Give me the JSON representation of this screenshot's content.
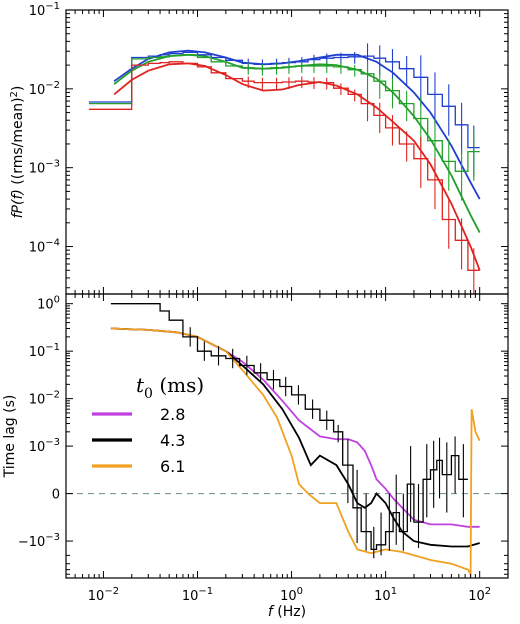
{
  "chart_data": [
    {
      "type": "line",
      "panel": "top",
      "ylabel_parts": [
        "fP(f)",
        " ((rms/mean)",
        "2",
        ")"
      ],
      "xscale": "log",
      "yscale": "log",
      "xlim": [
        0.004,
        200
      ],
      "ylim": [
        2.5e-05,
        0.1
      ],
      "yticks": [
        {
          "v": 0.1,
          "base": "10",
          "exp": "−1"
        },
        {
          "v": 0.01,
          "base": "10",
          "exp": "−2"
        },
        {
          "v": 0.001,
          "base": "10",
          "exp": "−3"
        },
        {
          "v": 0.0001,
          "base": "10",
          "exp": "−4"
        }
      ],
      "colors": {
        "blue": "#1f3fd1",
        "green": "#22a02a",
        "red": "#e0231f"
      },
      "series": [
        {
          "color": "blue",
          "kind": "model",
          "x": [
            0.013,
            0.02,
            0.03,
            0.05,
            0.08,
            0.12,
            0.2,
            0.3,
            0.5,
            0.8,
            1.2,
            2,
            3,
            5,
            8,
            12,
            20,
            30,
            50,
            80,
            100
          ],
          "y": [
            0.0125,
            0.018,
            0.024,
            0.029,
            0.0305,
            0.029,
            0.025,
            0.0215,
            0.0205,
            0.021,
            0.0225,
            0.025,
            0.027,
            0.027,
            0.022,
            0.016,
            0.009,
            0.005,
            0.0019,
            0.00065,
            0.0004
          ]
        },
        {
          "color": "green",
          "kind": "model",
          "x": [
            0.013,
            0.02,
            0.03,
            0.05,
            0.08,
            0.12,
            0.2,
            0.3,
            0.5,
            0.8,
            1.2,
            2,
            3,
            5,
            8,
            12,
            20,
            30,
            50,
            80,
            100
          ],
          "y": [
            0.0115,
            0.017,
            0.022,
            0.026,
            0.027,
            0.026,
            0.022,
            0.0185,
            0.018,
            0.0185,
            0.0195,
            0.0205,
            0.02,
            0.0175,
            0.0135,
            0.009,
            0.0045,
            0.0023,
            0.0008,
            0.00025,
            0.00015
          ]
        },
        {
          "color": "red",
          "kind": "model",
          "x": [
            0.013,
            0.02,
            0.03,
            0.05,
            0.08,
            0.12,
            0.2,
            0.3,
            0.5,
            0.8,
            1.2,
            2,
            3,
            5,
            8,
            12,
            20,
            30,
            50,
            80,
            100
          ],
          "y": [
            0.0085,
            0.013,
            0.017,
            0.0205,
            0.021,
            0.0195,
            0.015,
            0.0115,
            0.0095,
            0.0098,
            0.0112,
            0.0122,
            0.011,
            0.0085,
            0.0058,
            0.0038,
            0.0022,
            0.0011,
            0.00035,
            0.0001,
            5e-05
          ]
        },
        {
          "color": "blue",
          "kind": "step",
          "x": [
            0.007,
            0.013,
            0.02,
            0.03,
            0.04,
            0.05,
            0.07,
            0.1,
            0.14,
            0.2,
            0.3,
            0.4,
            0.6,
            0.8,
            1.1,
            1.5,
            2,
            2.8,
            4,
            5.5,
            7.5,
            10,
            14,
            20,
            28,
            40,
            55,
            75,
            100
          ],
          "y": [
            0.0068,
            0.0068,
            0.025,
            0.026,
            0.027,
            0.028,
            0.029,
            0.027,
            0.025,
            0.023,
            0.021,
            0.0205,
            0.021,
            0.0215,
            0.022,
            0.0235,
            0.0245,
            0.025,
            0.0255,
            0.026,
            0.0245,
            0.022,
            0.018,
            0.014,
            0.0085,
            0.006,
            0.0035,
            0.0018,
            0.0018
          ]
        },
        {
          "color": "green",
          "kind": "step",
          "x": [
            0.007,
            0.013,
            0.02,
            0.03,
            0.04,
            0.05,
            0.07,
            0.1,
            0.14,
            0.2,
            0.3,
            0.4,
            0.6,
            0.8,
            1.1,
            1.5,
            2,
            2.8,
            4,
            5.5,
            7.5,
            10,
            14,
            20,
            28,
            40,
            55,
            75,
            100
          ],
          "y": [
            0.0065,
            0.0065,
            0.024,
            0.025,
            0.0255,
            0.0265,
            0.027,
            0.025,
            0.022,
            0.0195,
            0.0185,
            0.018,
            0.0185,
            0.019,
            0.0195,
            0.0195,
            0.0195,
            0.019,
            0.0175,
            0.0155,
            0.0125,
            0.0095,
            0.0065,
            0.0042,
            0.0022,
            0.0012,
            0.0009,
            0.0016,
            0.0016
          ]
        },
        {
          "color": "red",
          "kind": "step",
          "x": [
            0.007,
            0.013,
            0.02,
            0.03,
            0.04,
            0.05,
            0.07,
            0.1,
            0.14,
            0.2,
            0.3,
            0.4,
            0.6,
            0.8,
            1.1,
            1.5,
            2,
            2.8,
            4,
            5.5,
            7.5,
            10,
            14,
            20,
            28,
            40,
            55,
            75,
            100
          ],
          "y": [
            0.0055,
            0.0055,
            0.02,
            0.021,
            0.0215,
            0.022,
            0.021,
            0.019,
            0.016,
            0.0135,
            0.0125,
            0.012,
            0.012,
            0.0122,
            0.0125,
            0.0122,
            0.012,
            0.0102,
            0.0085,
            0.0065,
            0.0046,
            0.0032,
            0.002,
            0.0013,
            0.0007,
            0.00022,
            0.00012,
            5e-05,
            5e-05
          ]
        }
      ]
    },
    {
      "type": "line",
      "panel": "bottom",
      "xlabel_parts": [
        "f",
        " (Hz)"
      ],
      "ylabel": "Time lag (s)",
      "xscale": "log",
      "yscale": "symlog",
      "linthresh": 0.001,
      "xlim": [
        0.004,
        200
      ],
      "ylim": [
        -0.006,
        1.6
      ],
      "xticks": [
        {
          "v": 0.01,
          "base": "10",
          "exp": "−2"
        },
        {
          "v": 0.1,
          "base": "10",
          "exp": "−1"
        },
        {
          "v": 1,
          "base": "10",
          "exp": "0"
        },
        {
          "v": 10,
          "base": "10",
          "exp": "1"
        },
        {
          "v": 100,
          "base": "10",
          "exp": "2"
        }
      ],
      "yticks": [
        {
          "v": 1,
          "base": "10",
          "exp": "0"
        },
        {
          "v": 0.1,
          "base": "10",
          "exp": "−1"
        },
        {
          "v": 0.01,
          "base": "10",
          "exp": "−2"
        },
        {
          "v": 0.001,
          "base": "10",
          "exp": "−3"
        },
        {
          "v": 0,
          "base": "0",
          "exp": ""
        },
        {
          "v": -0.001,
          "base": "−10",
          "exp": "−3"
        }
      ],
      "zero_line_color": "#7a9a9a",
      "legend": {
        "title_base": "t",
        "title_sub": "0",
        "title_unit": " (ms)",
        "position": "left",
        "entries": [
          {
            "label": "2.8",
            "color": "#c040e0"
          },
          {
            "label": "4.3",
            "color": "#000000"
          },
          {
            "label": "6.1",
            "color": "#f2a020"
          }
        ]
      },
      "series": [
        {
          "name": "2.8",
          "color": "#c040e0",
          "kind": "model",
          "x": [
            0.012,
            0.03,
            0.06,
            0.1,
            0.2,
            0.3,
            0.5,
            0.8,
            1.2,
            2,
            3,
            4,
            5,
            6,
            7,
            8,
            10,
            12,
            15,
            20,
            30,
            50,
            75,
            100
          ],
          "y": [
            0.3,
            0.28,
            0.25,
            0.2,
            0.1,
            0.06,
            0.025,
            0.009,
            0.0035,
            0.0016,
            0.0014,
            0.0014,
            0.0012,
            0.0009,
            0.0006,
            0.0003,
            0.0001,
            -0.0001,
            -0.0003,
            -0.00055,
            -0.00065,
            -0.00065,
            -0.0007,
            -0.0007
          ]
        },
        {
          "name": "4.3",
          "color": "#000000",
          "kind": "model",
          "x": [
            0.012,
            0.03,
            0.06,
            0.1,
            0.2,
            0.3,
            0.5,
            0.8,
            1.2,
            1.6,
            2,
            3,
            4,
            5,
            6,
            7,
            8,
            10,
            12,
            15,
            20,
            30,
            50,
            75,
            100
          ],
          "y": [
            0.3,
            0.28,
            0.25,
            0.2,
            0.1,
            0.05,
            0.02,
            0.006,
            0.0015,
            0.0006,
            0.0008,
            0.0006,
            0.0002,
            -0.0002,
            -0.0003,
            -0.0002,
            0.0,
            -0.0002,
            -0.0005,
            -0.0008,
            -0.001,
            -0.0012,
            -0.0013,
            -0.0013,
            -0.0011
          ]
        },
        {
          "name": "6.1",
          "color": "#f2a020",
          "kind": "model",
          "x": [
            0.012,
            0.03,
            0.06,
            0.1,
            0.2,
            0.3,
            0.5,
            0.7,
            1.0,
            1.2,
            1.5,
            2.0,
            3,
            4,
            5,
            7,
            10,
            15,
            20,
            30,
            50,
            75,
            80,
            82,
            90,
            100
          ],
          "y": [
            0.3,
            0.28,
            0.25,
            0.2,
            0.1,
            0.04,
            0.012,
            0.004,
            0.0008,
            0.0002,
            0.0,
            -0.0002,
            -0.0002,
            -0.0008,
            -0.0015,
            -0.0018,
            -0.0015,
            -0.0017,
            -0.002,
            -0.0025,
            -0.003,
            -0.004,
            -0.005,
            0.006,
            0.002,
            0.0013
          ]
        },
        {
          "name": "data",
          "color": "#000000",
          "kind": "step",
          "x": [
            0.012,
            0.025,
            0.04,
            0.05,
            0.07,
            0.1,
            0.14,
            0.2,
            0.28,
            0.4,
            0.55,
            0.75,
            1.0,
            1.4,
            2.0,
            2.8,
            3.5,
            4.5,
            5.5,
            7,
            8,
            10,
            12,
            14,
            17,
            20,
            25,
            30,
            35,
            40,
            50,
            60,
            75
          ],
          "y": [
            1.0,
            1.0,
            0.7,
            0.45,
            0.2,
            0.1,
            0.08,
            0.07,
            0.05,
            0.035,
            0.025,
            0.018,
            0.012,
            0.006,
            0.0035,
            0.002,
            0.0006,
            -0.0003,
            -0.0008,
            -0.0015,
            -0.0012,
            -0.0008,
            -0.0004,
            -0.0008,
            0.0002,
            -0.0006,
            0.0003,
            0.0005,
            0.0007,
            0.0004,
            0.0008,
            0.0003,
            -0.0002
          ]
        }
      ]
    }
  ]
}
